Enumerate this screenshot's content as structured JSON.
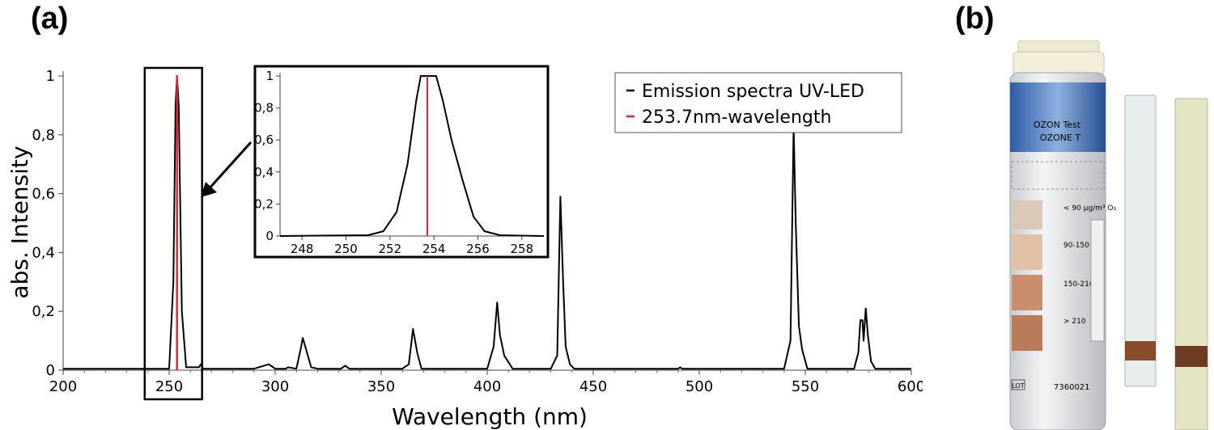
{
  "panels": {
    "a_label": "(a)",
    "b_label": "(b)"
  },
  "chart_data": {
    "type": "line",
    "xlabel": "Wavelength (nm)",
    "ylabel": "abs. Intensity",
    "xlim": [
      200,
      600
    ],
    "ylim": [
      0,
      1
    ],
    "xticks": [
      "200",
      "250",
      "300",
      "350",
      "400",
      "450",
      "500",
      "550",
      "600"
    ],
    "yticks": [
      "0",
      "0,2",
      "0,4",
      "0,6",
      "0,8",
      "1"
    ],
    "legend": {
      "position": "top-right",
      "entries": [
        "Emission spectra UV-LED",
        "253.7nm-wavelength"
      ]
    },
    "series": [
      {
        "name": "Emission spectra UV-LED",
        "color": "#000000",
        "x": [
          200,
          250,
          252,
          253,
          253.7,
          254.5,
          256,
          258,
          264,
          265,
          266,
          290,
          297,
          298,
          300,
          305,
          306,
          310,
          312,
          313,
          315,
          317,
          320,
          331,
          333,
          335,
          360,
          363,
          365,
          367,
          369,
          400,
          403,
          404.7,
          406,
          408,
          412,
          430,
          433,
          434.5,
          435.8,
          437,
          439,
          441,
          490,
          491,
          492,
          540,
          543,
          544.5,
          545.5,
          547,
          548.5,
          551,
          573,
          575,
          576,
          577,
          577.5,
          578.5,
          579.5,
          581,
          583,
          600
        ],
        "y": [
          0.005,
          0.005,
          0.3,
          0.9,
          1.0,
          0.9,
          0.2,
          0.01,
          0.01,
          0.02,
          0.005,
          0.005,
          0.02,
          0.015,
          0.005,
          0.005,
          0.01,
          0.005,
          0.07,
          0.11,
          0.06,
          0.01,
          0.005,
          0.005,
          0.015,
          0.005,
          0.005,
          0.02,
          0.14,
          0.06,
          0.005,
          0.005,
          0.08,
          0.23,
          0.12,
          0.05,
          0.005,
          0.005,
          0.05,
          0.59,
          0.3,
          0.08,
          0.02,
          0.005,
          0.005,
          0.01,
          0.005,
          0.005,
          0.1,
          0.83,
          0.5,
          0.15,
          0.07,
          0.005,
          0.005,
          0.06,
          0.17,
          0.17,
          0.1,
          0.21,
          0.12,
          0.03,
          0.005,
          0.005
        ]
      },
      {
        "name": "253.7nm-wavelength",
        "color": "#e8262a",
        "x": [
          253.7,
          253.7
        ],
        "y": [
          0,
          1
        ]
      }
    ],
    "highlight_box": {
      "x_from": 240,
      "x_to": 264
    },
    "inset": {
      "xlim": [
        247,
        259
      ],
      "ylim": [
        0,
        1
      ],
      "xticks": [
        "248",
        "250",
        "252",
        "254",
        "256",
        "258"
      ],
      "yticks": [
        "0",
        "0,2",
        "0,4",
        "0,6",
        "0,8",
        "1"
      ],
      "series": [
        {
          "color": "#000000",
          "x": [
            247,
            251,
            251.7,
            252.3,
            252.8,
            253.2,
            253.4,
            254.1,
            254.4,
            254.8,
            255.3,
            255.8,
            256.3,
            257,
            259
          ],
          "y": [
            0.0,
            0.005,
            0.03,
            0.15,
            0.45,
            0.85,
            1.0,
            1.0,
            0.85,
            0.6,
            0.35,
            0.12,
            0.03,
            0.005,
            0.0
          ]
        },
        {
          "color": "#e8262a",
          "x": [
            253.7,
            253.7
          ],
          "y": [
            0,
            1
          ]
        }
      ]
    }
  },
  "photo": {
    "tube": {
      "label_top": "OZON Test",
      "label_sub": "OZONE T",
      "scale": [
        "< 90 µg/m³ O₃",
        "90-150",
        "150-210",
        "> 210"
      ],
      "lot_label": "LOT",
      "lot_number": "7360021"
    }
  }
}
